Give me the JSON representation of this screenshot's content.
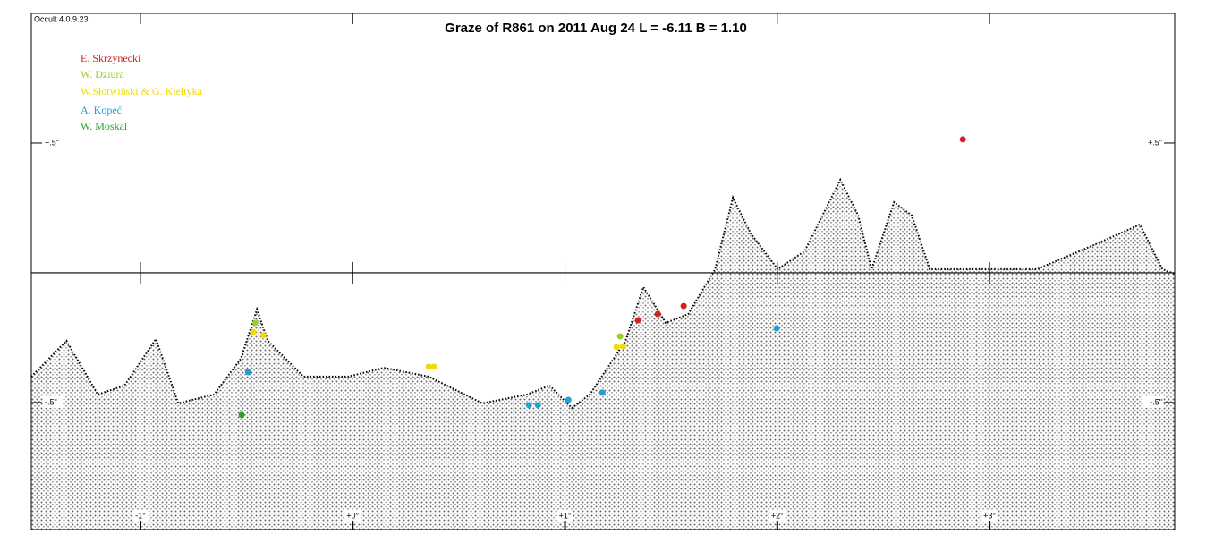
{
  "chart_data": {
    "type": "scatter",
    "title": "Graze of  R861  on  2011 Aug 24    L = -6.11   B = 1.10",
    "software": "Occult 4.0.9.23",
    "xlim": [
      -1.514,
      3.872
    ],
    "ylim": [
      -0.99,
      1.0
    ],
    "xticks": [
      {
        "value": -1,
        "label": "-1°"
      },
      {
        "value": 0,
        "label": "+0°"
      },
      {
        "value": 1,
        "label": "+1°"
      },
      {
        "value": 2,
        "label": "+2°"
      },
      {
        "value": 3,
        "label": "+3°"
      }
    ],
    "yticks": [
      {
        "value": 0.5,
        "label": "+.5\""
      },
      {
        "value": -0.5,
        "label": "-.5\""
      }
    ],
    "limb": {
      "color": "#000000",
      "x": [
        -1.514,
        -1.349,
        -1.201,
        -1.075,
        -0.927,
        -0.822,
        -0.653,
        -0.527,
        -0.451,
        -0.4,
        -0.232,
        -0.021,
        0.147,
        0.358,
        0.611,
        0.822,
        0.927,
        1.032,
        1.117,
        1.285,
        1.369,
        1.475,
        1.58,
        1.707,
        1.791,
        1.875,
        2.002,
        2.128,
        2.297,
        2.381,
        2.444,
        2.55,
        2.634,
        2.718,
        2.971,
        3.224,
        3.519,
        3.708,
        3.814,
        3.869
      ],
      "y": [
        -0.4,
        -0.262,
        -0.469,
        -0.434,
        -0.255,
        -0.503,
        -0.469,
        -0.331,
        -0.141,
        -0.262,
        -0.4,
        -0.4,
        -0.366,
        -0.4,
        -0.503,
        -0.469,
        -0.434,
        -0.521,
        -0.469,
        -0.262,
        -0.055,
        -0.193,
        -0.159,
        0.014,
        0.29,
        0.152,
        0.014,
        0.083,
        0.359,
        0.221,
        0.014,
        0.272,
        0.221,
        0.014,
        0.014,
        0.014,
        0.117,
        0.186,
        0.014,
        -0.003
      ]
    },
    "series": [
      {
        "name": "E. Skrzynecki",
        "color": "#d42020",
        "x": [
          1.344,
          1.437,
          1.559,
          2.874
        ],
        "y": [
          -0.183,
          -0.159,
          -0.128,
          0.514
        ]
      },
      {
        "name": "W. Dziura",
        "color": "#9acd32",
        "x": [
          -0.459,
          1.26
        ],
        "y": [
          -0.193,
          -0.245
        ]
      },
      {
        "name": "W.Słotwiński & G. Kiełtyka",
        "color": "#f0dc00",
        "x": [
          -0.468,
          -0.421,
          0.358,
          0.383,
          1.243,
          1.273
        ],
        "y": [
          -0.228,
          -0.241,
          -0.362,
          -0.362,
          -0.286,
          -0.283
        ]
      },
      {
        "name": "A. Kopeć",
        "color": "#1ea0d8",
        "x": [
          -0.493,
          0.83,
          0.872,
          1.016,
          1.176,
          1.997
        ],
        "y": [
          -0.383,
          -0.51,
          -0.51,
          -0.49,
          -0.462,
          -0.214
        ]
      },
      {
        "name": "W. Moskal",
        "color": "#2ca02c",
        "x": [
          -0.523
        ],
        "y": [
          -0.548
        ]
      }
    ]
  }
}
